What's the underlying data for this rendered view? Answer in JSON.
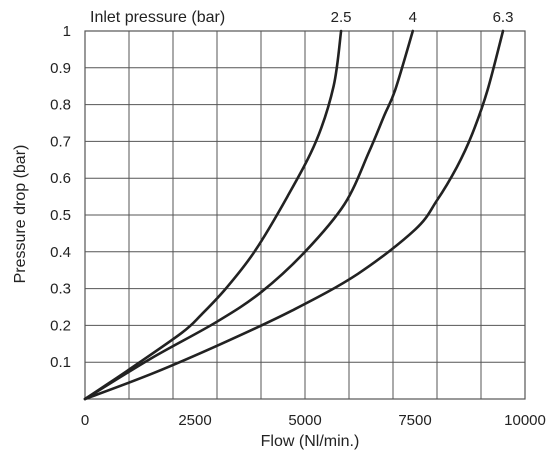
{
  "chart_data": {
    "type": "line",
    "xlabel": "Flow (Nl/min.)",
    "ylabel": "Pressure drop (bar)",
    "legend_title": "Inlet pressure (bar)",
    "xlim": [
      0,
      10000
    ],
    "ylim": [
      0,
      1
    ],
    "x_ticks": [
      {
        "value": 0,
        "label": "0"
      },
      {
        "value": 2500,
        "label": "2500"
      },
      {
        "value": 5000,
        "label": "5000"
      },
      {
        "value": 7500,
        "label": "7500"
      },
      {
        "value": 10000,
        "label": "10000"
      }
    ],
    "y_ticks": [
      {
        "value": 0.1,
        "label": "0.1"
      },
      {
        "value": 0.2,
        "label": "0.2"
      },
      {
        "value": 0.3,
        "label": "0.3"
      },
      {
        "value": 0.4,
        "label": "0.4"
      },
      {
        "value": 0.5,
        "label": "0.5"
      },
      {
        "value": 0.6,
        "label": "0.6"
      },
      {
        "value": 0.7,
        "label": "0.7"
      },
      {
        "value": 0.8,
        "label": "0.8"
      },
      {
        "value": 0.9,
        "label": "0.9"
      },
      {
        "value": 1,
        "label": "1"
      }
    ],
    "grid": true,
    "series": [
      {
        "name": "2.5",
        "x": [
          0,
          1000,
          2200,
          2650,
          3200,
          3850,
          4600,
          5250,
          5650,
          5820
        ],
        "y": [
          0,
          0.08,
          0.18,
          0.23,
          0.3,
          0.4,
          0.55,
          0.7,
          0.85,
          1.0
        ]
      },
      {
        "name": "4",
        "x": [
          0,
          1500,
          3000,
          4000,
          5000,
          5900,
          6450,
          6800,
          7050,
          7450
        ],
        "y": [
          0,
          0.11,
          0.21,
          0.29,
          0.4,
          0.53,
          0.67,
          0.77,
          0.84,
          1.0
        ]
      },
      {
        "name": "6.3",
        "x": [
          0,
          1550,
          3100,
          4700,
          6200,
          7500,
          8000,
          8450,
          8800,
          9150,
          9500
        ],
        "y": [
          0,
          0.07,
          0.15,
          0.24,
          0.34,
          0.46,
          0.54,
          0.63,
          0.72,
          0.84,
          1.0
        ]
      }
    ],
    "line_color": "#222222",
    "grid_color": "#555555"
  }
}
